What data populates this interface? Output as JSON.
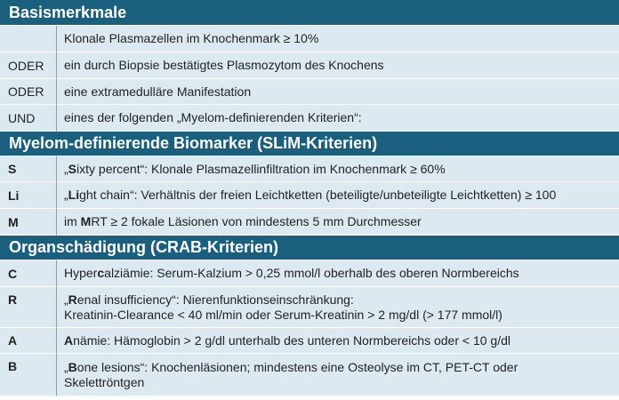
{
  "sections": {
    "basis": {
      "title": "Basismerkmale",
      "rows": [
        {
          "key": "",
          "text": "Klonale Plasmazellen im Knochenmark ≥ 10%"
        },
        {
          "key": "ODER",
          "text": "ein durch Biopsie bestätigtes Plasmozytom des Knochens"
        },
        {
          "key": "ODER",
          "text": "eine extramedulläre Manifestation"
        },
        {
          "key": "UND",
          "text": "eines der folgenden „Myelom-definierenden Kriterien“:"
        }
      ]
    },
    "slim": {
      "title": "Myelom-definierende Biomarker (SLiM-Kriterien)",
      "rows": [
        {
          "key": "S",
          "pre": "„",
          "bold": "S",
          "rest": "ixty percent“: Klonale Plasmazellinfiltration im Knochenmark ≥ 60%"
        },
        {
          "key": "Li",
          "pre": "„",
          "bold": "Li",
          "rest": "ght chain“: Verhältnis der freien Leichtketten (beteiligte/unbeteiligte Leichtketten) ≥ 100"
        },
        {
          "key": "M",
          "pre": "im ",
          "bold": "M",
          "rest": "RT ≥ 2 fokale Läsionen von mindestens 5 mm Durchmesser"
        }
      ]
    },
    "crab": {
      "title": "Organschädigung (CRAB-Kriterien)",
      "rows": [
        {
          "key": "C",
          "pre": "Hyper",
          "bold": "c",
          "rest": "alziämie: Serum-Kalzium > 0,25 mmol/l oberhalb des oberen Normbereichs"
        },
        {
          "key": "R",
          "pre": "„",
          "bold": "R",
          "rest": "enal insufficiency“: Nierenfunktionseinschränkung:",
          "line2": "Kreatinin-Clearance < 40 ml/min oder Serum-Kreatinin > 2 mg/dl (> 177 mmol/l)"
        },
        {
          "key": "A",
          "pre": "",
          "bold": "A",
          "rest": "nämie: Hämoglobin > 2 g/dl unterhalb des unteren Normbereichs oder < 10 g/dl"
        },
        {
          "key": "B",
          "pre": "„",
          "bold": "B",
          "rest": "one lesions“: Knochenläsionen; mindestens eine Osteolyse im CT, PET-CT oder",
          "line2": "Skelettröntgen"
        }
      ]
    }
  }
}
